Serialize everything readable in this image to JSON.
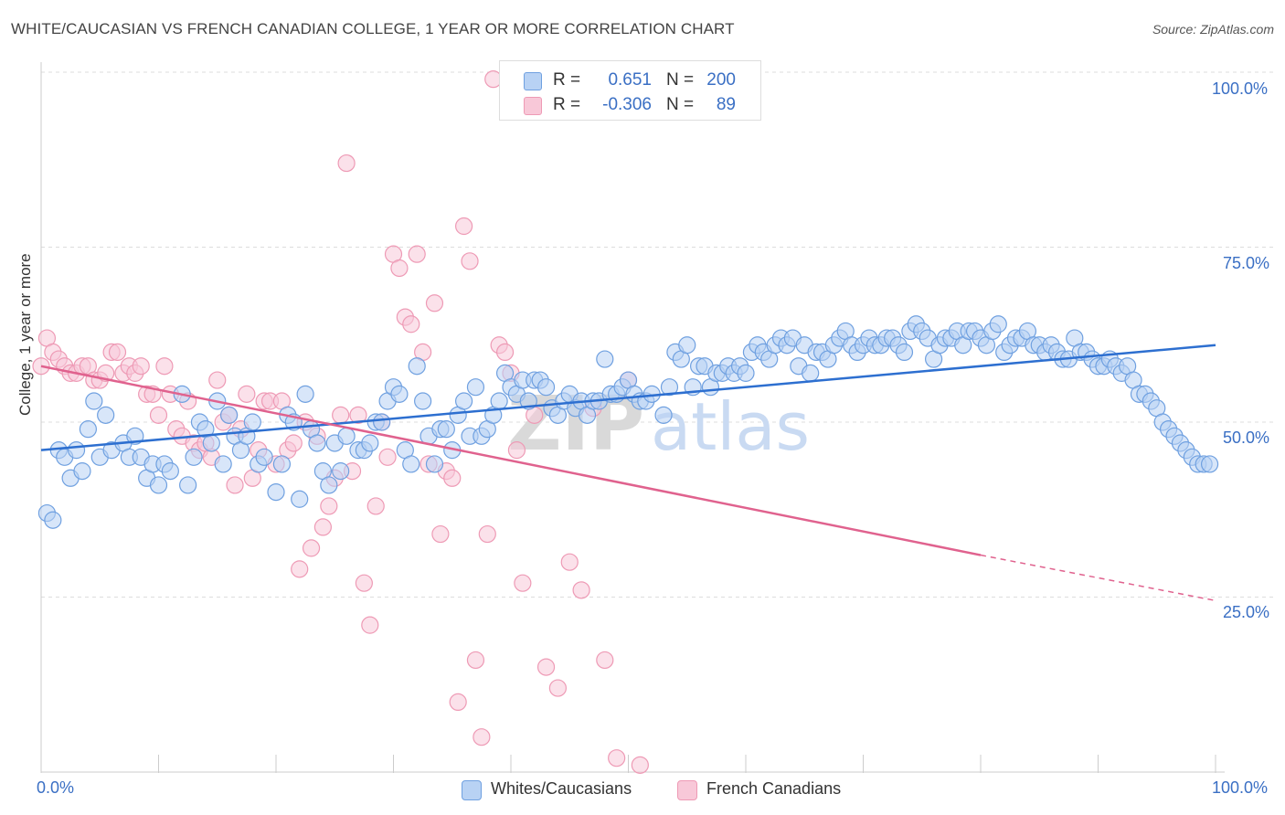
{
  "title": "WHITE/CAUCASIAN VS FRENCH CANADIAN COLLEGE, 1 YEAR OR MORE CORRELATION CHART",
  "source": "Source: ZipAtlas.com",
  "watermark": {
    "zip": "ZIP",
    "atlas": "atlas"
  },
  "legend": {
    "r_label": "R =",
    "n_label": "N =",
    "rows": [
      {
        "r": "0.651",
        "n": "200",
        "color": "#a9c8f0"
      },
      {
        "r": "-0.306",
        "n": "89",
        "color": "#f5b8cc"
      }
    ]
  },
  "bottom_legend": {
    "series1": "Whites/Caucasians",
    "series2": "French Canadians"
  },
  "axis": {
    "x_min_label": "0.0%",
    "x_max_label": "100.0%",
    "y_ticks": [
      "100.0%",
      "75.0%",
      "50.0%",
      "25.0%"
    ],
    "y_label": "College, 1 year or more"
  },
  "chart_data": {
    "type": "scatter",
    "xlim": [
      0,
      100
    ],
    "ylim": [
      0,
      100
    ],
    "xlabel": "",
    "ylabel": "College, 1 year or more",
    "grid": "horizontal dashed",
    "legend_placement": "top-center",
    "series": [
      {
        "name": "Whites/Caucasians",
        "color": "#6fa0e0",
        "fill": "#b8d2f4",
        "r": 0.651,
        "n": 200,
        "trend": {
          "x": [
            0,
            100
          ],
          "y": [
            46,
            61
          ],
          "color": "#2d6fd0"
        },
        "points": [
          [
            0.5,
            37
          ],
          [
            1,
            36
          ],
          [
            1.5,
            46
          ],
          [
            2,
            45
          ],
          [
            2.5,
            42
          ],
          [
            3,
            46
          ],
          [
            3.5,
            43
          ],
          [
            4,
            49
          ],
          [
            4.5,
            53
          ],
          [
            5,
            45
          ],
          [
            5.5,
            51
          ],
          [
            6,
            46
          ],
          [
            7,
            47
          ],
          [
            7.5,
            45
          ],
          [
            8,
            48
          ],
          [
            8.5,
            45
          ],
          [
            9,
            42
          ],
          [
            9.5,
            44
          ],
          [
            10,
            41
          ],
          [
            10.5,
            44
          ],
          [
            11,
            43
          ],
          [
            12,
            54
          ],
          [
            12.5,
            41
          ],
          [
            13,
            45
          ],
          [
            13.5,
            50
          ],
          [
            14,
            49
          ],
          [
            14.5,
            47
          ],
          [
            15,
            53
          ],
          [
            15.5,
            44
          ],
          [
            16,
            51
          ],
          [
            16.5,
            48
          ],
          [
            17,
            46
          ],
          [
            17.5,
            48
          ],
          [
            18,
            50
          ],
          [
            18.5,
            44
          ],
          [
            19,
            45
          ],
          [
            20,
            40
          ],
          [
            20.5,
            44
          ],
          [
            21,
            51
          ],
          [
            21.5,
            50
          ],
          [
            22,
            39
          ],
          [
            22.5,
            54
          ],
          [
            23,
            49
          ],
          [
            23.5,
            47
          ],
          [
            24,
            43
          ],
          [
            24.5,
            41
          ],
          [
            25,
            47
          ],
          [
            25.5,
            43
          ],
          [
            26,
            48
          ],
          [
            27,
            46
          ],
          [
            27.5,
            46
          ],
          [
            28,
            47
          ],
          [
            28.5,
            50
          ],
          [
            29,
            50
          ],
          [
            29.5,
            53
          ],
          [
            30,
            55
          ],
          [
            30.5,
            54
          ],
          [
            31,
            46
          ],
          [
            31.5,
            44
          ],
          [
            32,
            58
          ],
          [
            32.5,
            53
          ],
          [
            33,
            48
          ],
          [
            33.5,
            44
          ],
          [
            34,
            49
          ],
          [
            34.5,
            49
          ],
          [
            35,
            46
          ],
          [
            35.5,
            51
          ],
          [
            36,
            53
          ],
          [
            36.5,
            48
          ],
          [
            37,
            55
          ],
          [
            37.5,
            48
          ],
          [
            38,
            49
          ],
          [
            38.5,
            51
          ],
          [
            39,
            53
          ],
          [
            39.5,
            57
          ],
          [
            40,
            55
          ],
          [
            40.5,
            54
          ],
          [
            41,
            56
          ],
          [
            41.5,
            53
          ],
          [
            42,
            56
          ],
          [
            42.5,
            56
          ],
          [
            43,
            55
          ],
          [
            43.5,
            52
          ],
          [
            44,
            51
          ],
          [
            44.5,
            53
          ],
          [
            45,
            54
          ],
          [
            45.5,
            52
          ],
          [
            46,
            53
          ],
          [
            46.5,
            51
          ],
          [
            47,
            53
          ],
          [
            47.5,
            53
          ],
          [
            48,
            59
          ],
          [
            48.5,
            54
          ],
          [
            49,
            54
          ],
          [
            49.5,
            55
          ],
          [
            50,
            56
          ],
          [
            50.5,
            54
          ],
          [
            51,
            53
          ],
          [
            51.5,
            53
          ],
          [
            52,
            54
          ],
          [
            53,
            51
          ],
          [
            53.5,
            55
          ],
          [
            54,
            60
          ],
          [
            54.5,
            59
          ],
          [
            55,
            61
          ],
          [
            55.5,
            55
          ],
          [
            56,
            58
          ],
          [
            56.5,
            58
          ],
          [
            57,
            55
          ],
          [
            57.5,
            57
          ],
          [
            58,
            57
          ],
          [
            58.5,
            58
          ],
          [
            59,
            57
          ],
          [
            59.5,
            58
          ],
          [
            60,
            57
          ],
          [
            60.5,
            60
          ],
          [
            61,
            61
          ],
          [
            61.5,
            60
          ],
          [
            62,
            59
          ],
          [
            62.5,
            61
          ],
          [
            63,
            62
          ],
          [
            63.5,
            61
          ],
          [
            64,
            62
          ],
          [
            64.5,
            58
          ],
          [
            65,
            61
          ],
          [
            65.5,
            57
          ],
          [
            66,
            60
          ],
          [
            66.5,
            60
          ],
          [
            67,
            59
          ],
          [
            67.5,
            61
          ],
          [
            68,
            62
          ],
          [
            68.5,
            63
          ],
          [
            69,
            61
          ],
          [
            69.5,
            60
          ],
          [
            70,
            61
          ],
          [
            70.5,
            62
          ],
          [
            71,
            61
          ],
          [
            71.5,
            61
          ],
          [
            72,
            62
          ],
          [
            72.5,
            62
          ],
          [
            73,
            61
          ],
          [
            73.5,
            60
          ],
          [
            74,
            63
          ],
          [
            74.5,
            64
          ],
          [
            75,
            63
          ],
          [
            75.5,
            62
          ],
          [
            76,
            59
          ],
          [
            76.5,
            61
          ],
          [
            77,
            62
          ],
          [
            77.5,
            62
          ],
          [
            78,
            63
          ],
          [
            78.5,
            61
          ],
          [
            79,
            63
          ],
          [
            79.5,
            63
          ],
          [
            80,
            62
          ],
          [
            80.5,
            61
          ],
          [
            81,
            63
          ],
          [
            81.5,
            64
          ],
          [
            82,
            60
          ],
          [
            82.5,
            61
          ],
          [
            83,
            62
          ],
          [
            83.5,
            62
          ],
          [
            84,
            63
          ],
          [
            84.5,
            61
          ],
          [
            85,
            61
          ],
          [
            85.5,
            60
          ],
          [
            86,
            61
          ],
          [
            86.5,
            60
          ],
          [
            87,
            59
          ],
          [
            87.5,
            59
          ],
          [
            88,
            62
          ],
          [
            88.5,
            60
          ],
          [
            89,
            60
          ],
          [
            89.5,
            59
          ],
          [
            90,
            58
          ],
          [
            90.5,
            58
          ],
          [
            91,
            59
          ],
          [
            91.5,
            58
          ],
          [
            92,
            57
          ],
          [
            92.5,
            58
          ],
          [
            93,
            56
          ],
          [
            93.5,
            54
          ],
          [
            94,
            54
          ],
          [
            94.5,
            53
          ],
          [
            95,
            52
          ],
          [
            95.5,
            50
          ],
          [
            96,
            49
          ],
          [
            96.5,
            48
          ],
          [
            97,
            47
          ],
          [
            97.5,
            46
          ],
          [
            98,
            45
          ],
          [
            98.5,
            44
          ],
          [
            99,
            44
          ],
          [
            99.5,
            44
          ]
        ]
      },
      {
        "name": "French Canadians",
        "color": "#ee9ab5",
        "fill": "#f8c8d8",
        "r": -0.306,
        "n": 89,
        "trend": {
          "x": [
            0,
            80
          ],
          "y": [
            58,
            31
          ],
          "dashed_to": [
            100,
            24.5
          ],
          "color": "#e0628e"
        },
        "points": [
          [
            0,
            58
          ],
          [
            0.5,
            62
          ],
          [
            1,
            60
          ],
          [
            1.5,
            59
          ],
          [
            2,
            58
          ],
          [
            2.5,
            57
          ],
          [
            3,
            57
          ],
          [
            3.5,
            58
          ],
          [
            4,
            58
          ],
          [
            4.5,
            56
          ],
          [
            5,
            56
          ],
          [
            5.5,
            57
          ],
          [
            6,
            60
          ],
          [
            6.5,
            60
          ],
          [
            7,
            57
          ],
          [
            7.5,
            58
          ],
          [
            8,
            57
          ],
          [
            8.5,
            58
          ],
          [
            9,
            54
          ],
          [
            9.5,
            54
          ],
          [
            10,
            51
          ],
          [
            10.5,
            58
          ],
          [
            11,
            54
          ],
          [
            11.5,
            49
          ],
          [
            12,
            48
          ],
          [
            12.5,
            53
          ],
          [
            13,
            47
          ],
          [
            13.5,
            46
          ],
          [
            14,
            47
          ],
          [
            14.5,
            45
          ],
          [
            15,
            56
          ],
          [
            15.5,
            50
          ],
          [
            16,
            51
          ],
          [
            16.5,
            41
          ],
          [
            17,
            49
          ],
          [
            17.5,
            54
          ],
          [
            18,
            42
          ],
          [
            18.5,
            46
          ],
          [
            19,
            53
          ],
          [
            19.5,
            53
          ],
          [
            20,
            44
          ],
          [
            20.5,
            53
          ],
          [
            21,
            46
          ],
          [
            21.5,
            47
          ],
          [
            22,
            29
          ],
          [
            22.5,
            50
          ],
          [
            23,
            32
          ],
          [
            23.5,
            48
          ],
          [
            24,
            35
          ],
          [
            24.5,
            38
          ],
          [
            25,
            42
          ],
          [
            25.5,
            51
          ],
          [
            26,
            87
          ],
          [
            26.5,
            43
          ],
          [
            27,
            51
          ],
          [
            27.5,
            27
          ],
          [
            28,
            21
          ],
          [
            28.5,
            38
          ],
          [
            29,
            50
          ],
          [
            29.5,
            45
          ],
          [
            30,
            74
          ],
          [
            30.5,
            72
          ],
          [
            31,
            65
          ],
          [
            31.5,
            64
          ],
          [
            32,
            74
          ],
          [
            32.5,
            60
          ],
          [
            33,
            44
          ],
          [
            33.5,
            67
          ],
          [
            34,
            34
          ],
          [
            34.5,
            43
          ],
          [
            35,
            42
          ],
          [
            35.5,
            10
          ],
          [
            36,
            78
          ],
          [
            36.5,
            73
          ],
          [
            37,
            16
          ],
          [
            37.5,
            5
          ],
          [
            38,
            34
          ],
          [
            38.5,
            99
          ],
          [
            39,
            61
          ],
          [
            39.5,
            60
          ],
          [
            40,
            57
          ],
          [
            40.5,
            46
          ],
          [
            41,
            27
          ],
          [
            42,
            51
          ],
          [
            43,
            15
          ],
          [
            44,
            12
          ],
          [
            45,
            30
          ],
          [
            46,
            26
          ],
          [
            47,
            52
          ],
          [
            48,
            16
          ],
          [
            49,
            2
          ],
          [
            50,
            56
          ],
          [
            51,
            1
          ]
        ]
      }
    ]
  }
}
